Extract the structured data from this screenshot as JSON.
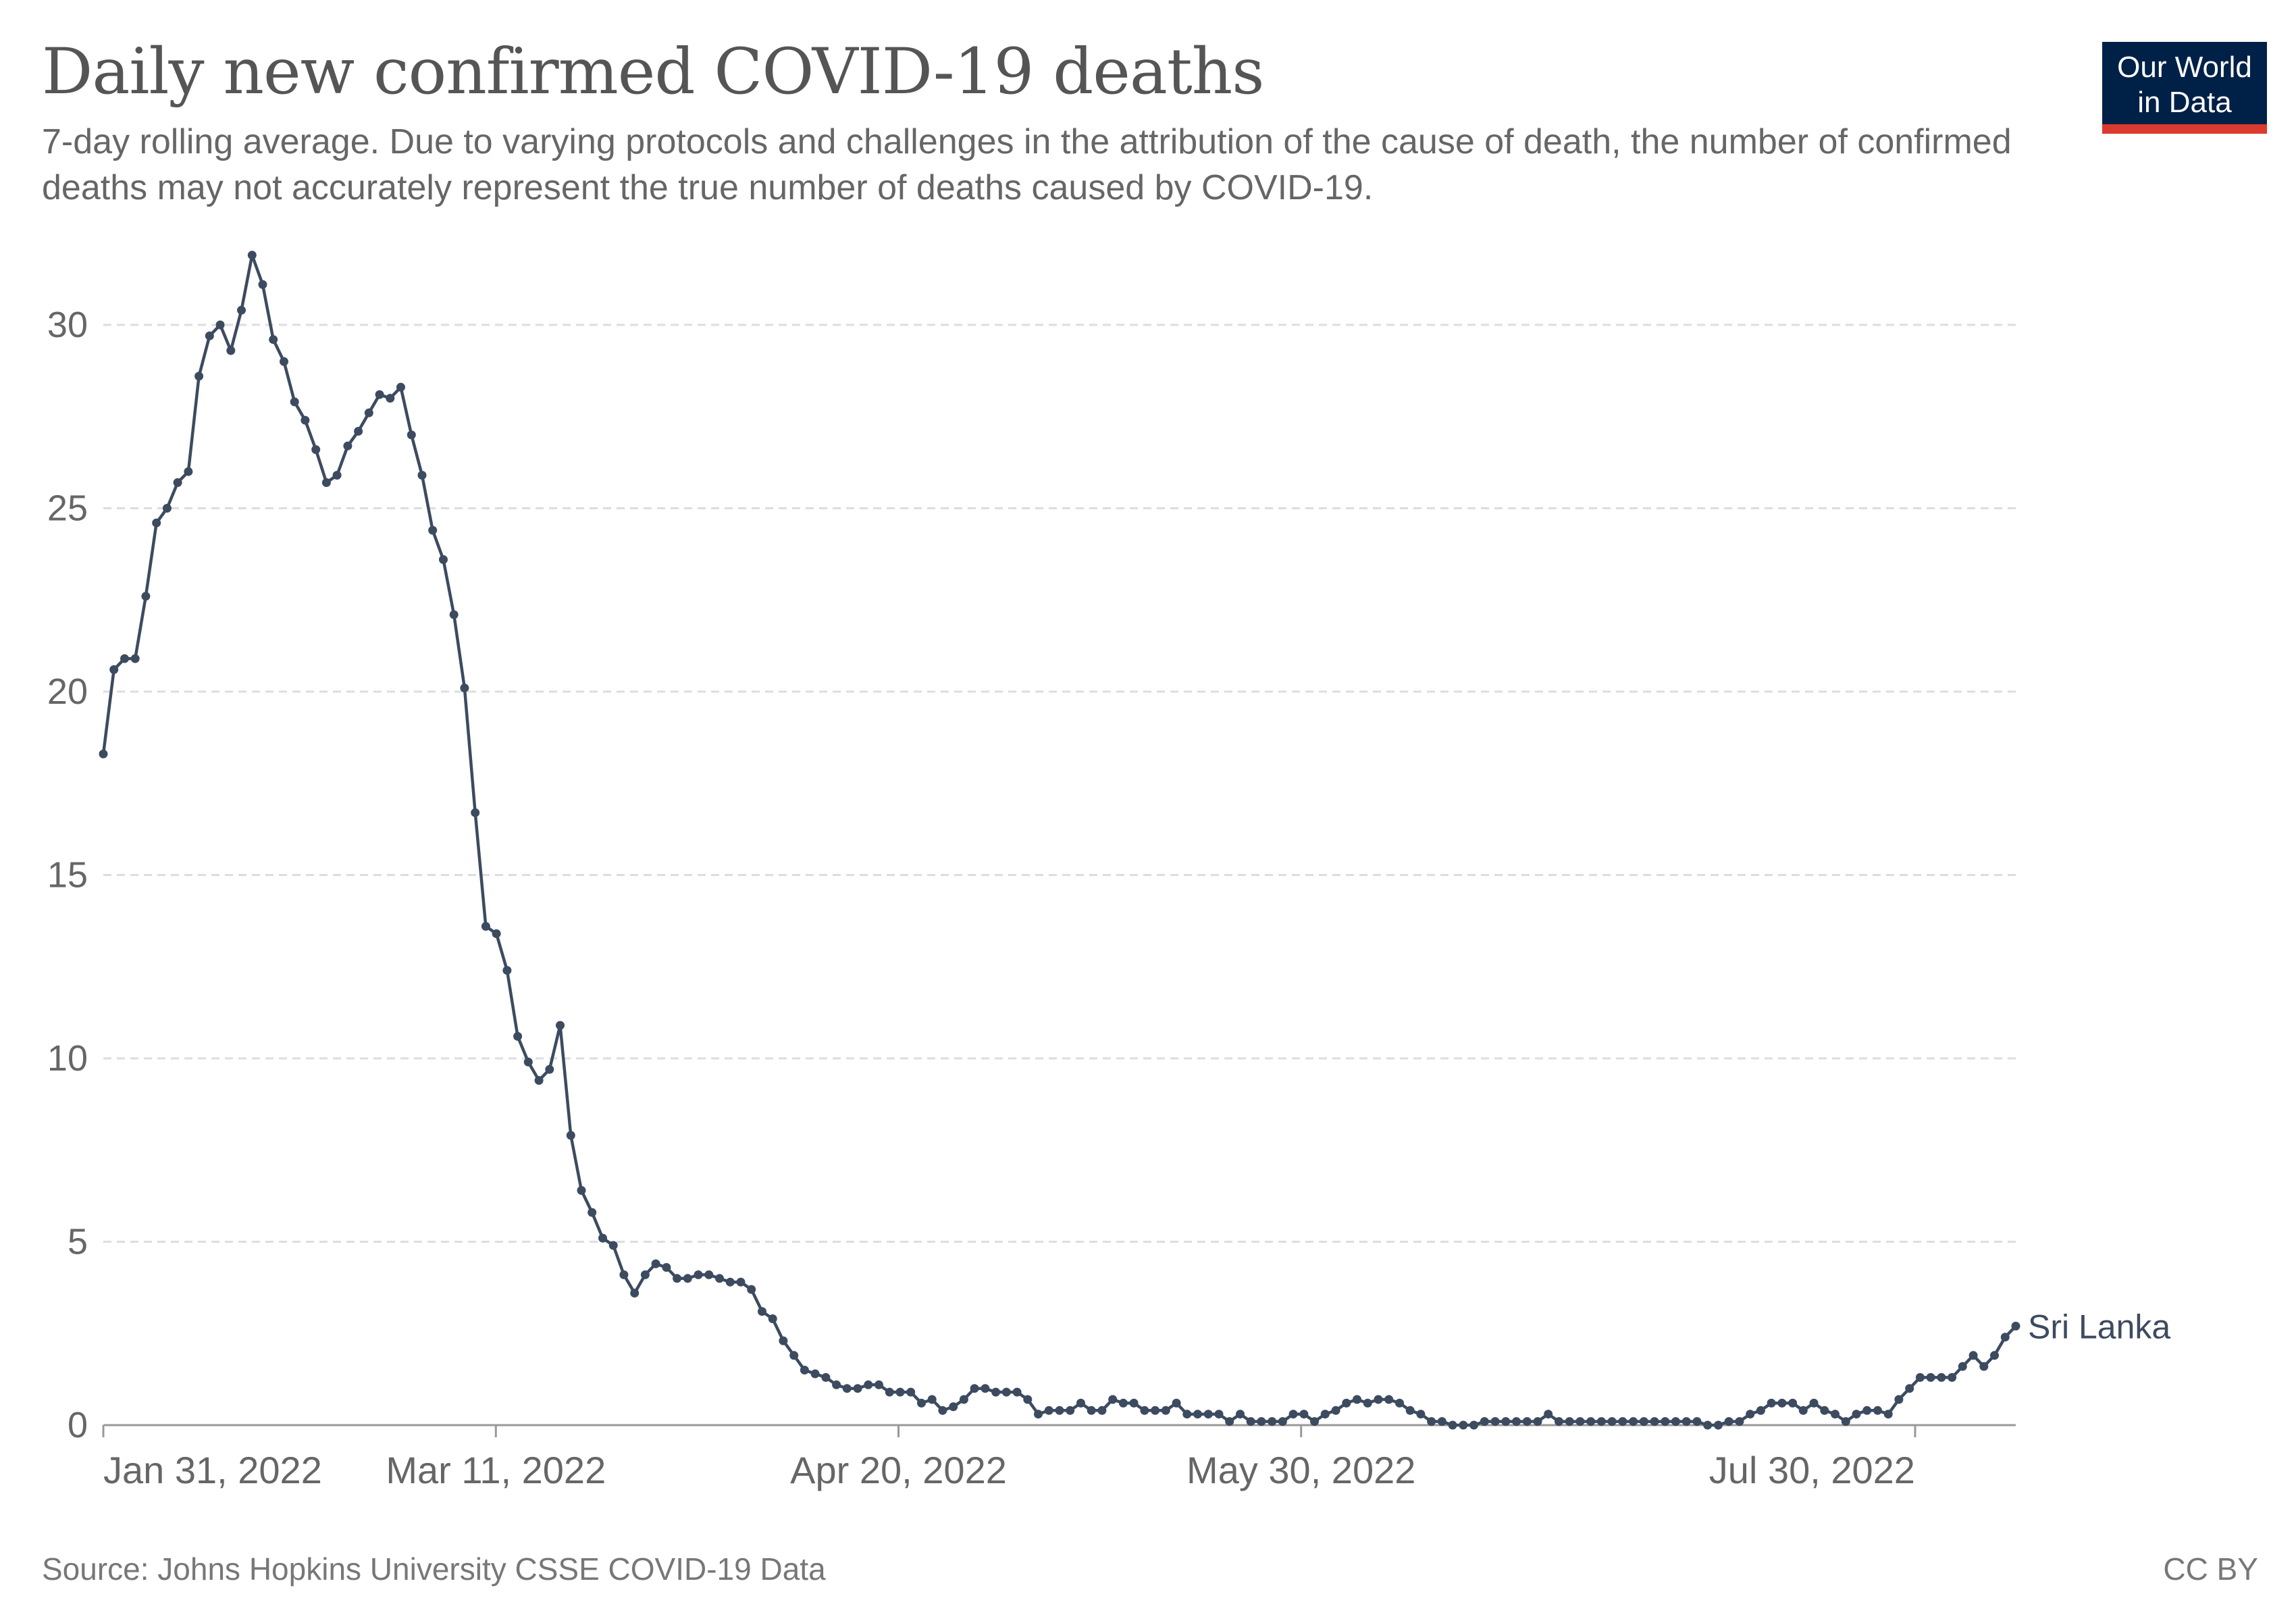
{
  "header": {
    "title": "Daily new confirmed COVID-19 deaths",
    "subtitle": "7-day rolling average. Due to varying protocols and challenges in the attribution of the cause of death, the number of confirmed deaths may not accurately represent the true number of deaths caused by COVID-19."
  },
  "logo": {
    "line1": "Our World",
    "line2": "in Data",
    "bg_color": "#002147",
    "accent_color": "#dc3a2e"
  },
  "footer": {
    "source": "Source: Johns Hopkins University CSSE COVID-19 Data",
    "license": "CC BY"
  },
  "chart_data": {
    "type": "line",
    "title": "Daily new confirmed COVID-19 deaths",
    "xlabel": "",
    "ylabel": "",
    "x_start": "2022-01-31",
    "x_end": "2022-08-09",
    "x_ticks": [
      "Jan 31, 2022",
      "Mar 11, 2022",
      "Apr 20, 2022",
      "May 30, 2022",
      "Jul 30, 2022"
    ],
    "x_tick_dates": [
      "2022-01-31",
      "2022-03-11",
      "2022-04-20",
      "2022-05-30",
      "2022-07-30"
    ],
    "y_ticks": [
      0,
      5,
      10,
      15,
      20,
      25,
      30
    ],
    "ylim": [
      0,
      32
    ],
    "grid": "horizontal dashed",
    "line_color": "#3d4b60",
    "series": [
      {
        "name": "Sri Lanka",
        "values": [
          18.3,
          20.6,
          20.9,
          20.9,
          22.6,
          24.6,
          25,
          25.7,
          26,
          28.6,
          29.7,
          30,
          29.3,
          30.4,
          31.9,
          31.1,
          29.6,
          29,
          27.9,
          27.4,
          26.6,
          25.7,
          25.9,
          26.7,
          27.1,
          27.6,
          28.1,
          28,
          28.3,
          27,
          25.9,
          24.4,
          23.6,
          22.1,
          20.1,
          16.7,
          13.6,
          13.4,
          12.4,
          10.6,
          9.9,
          9.4,
          9.7,
          10.9,
          7.9,
          6.4,
          5.8,
          5.1,
          4.9,
          4.1,
          3.6,
          4.1,
          4.4,
          4.3,
          4,
          4,
          4.1,
          4.1,
          4,
          3.9,
          3.9,
          3.7,
          3.1,
          2.9,
          2.3,
          1.9,
          1.5,
          1.4,
          1.3,
          1.1,
          1,
          1,
          1.1,
          1.1,
          0.9,
          0.9,
          0.9,
          0.6,
          0.7,
          0.4,
          0.5,
          0.7,
          1,
          1,
          0.9,
          0.9,
          0.9,
          0.7,
          0.3,
          0.4,
          0.4,
          0.4,
          0.6,
          0.4,
          0.4,
          0.7,
          0.6,
          0.6,
          0.4,
          0.4,
          0.4,
          0.6,
          0.3,
          0.3,
          0.3,
          0.3,
          0.1,
          0.3,
          0.1,
          0.1,
          0.1,
          0.1,
          0.3,
          0.3,
          0.1,
          0.3,
          0.4,
          0.6,
          0.7,
          0.6,
          0.7,
          0.7,
          0.6,
          0.4,
          0.3,
          0.1,
          0.1,
          0,
          0,
          0,
          0.1,
          0.1,
          0.1,
          0.1,
          0.1,
          0.1,
          0.3,
          0.1,
          0.1,
          0.1,
          0.1,
          0.1,
          0.1,
          0.1,
          0.1,
          0.1,
          0.1,
          0.1,
          0.1,
          0.1,
          0.1,
          0,
          0,
          0.1,
          0.1,
          0.3,
          0.4,
          0.6,
          0.6,
          0.6,
          0.4,
          0.6,
          0.4,
          0.3,
          0.1,
          0.3,
          0.4,
          0.4,
          0.3,
          0.7,
          1,
          1.3,
          1.3,
          1.3,
          1.3,
          1.6,
          1.9,
          1.6,
          1.9,
          2.4,
          2.7
        ]
      }
    ],
    "series_label": "Sri Lanka"
  }
}
